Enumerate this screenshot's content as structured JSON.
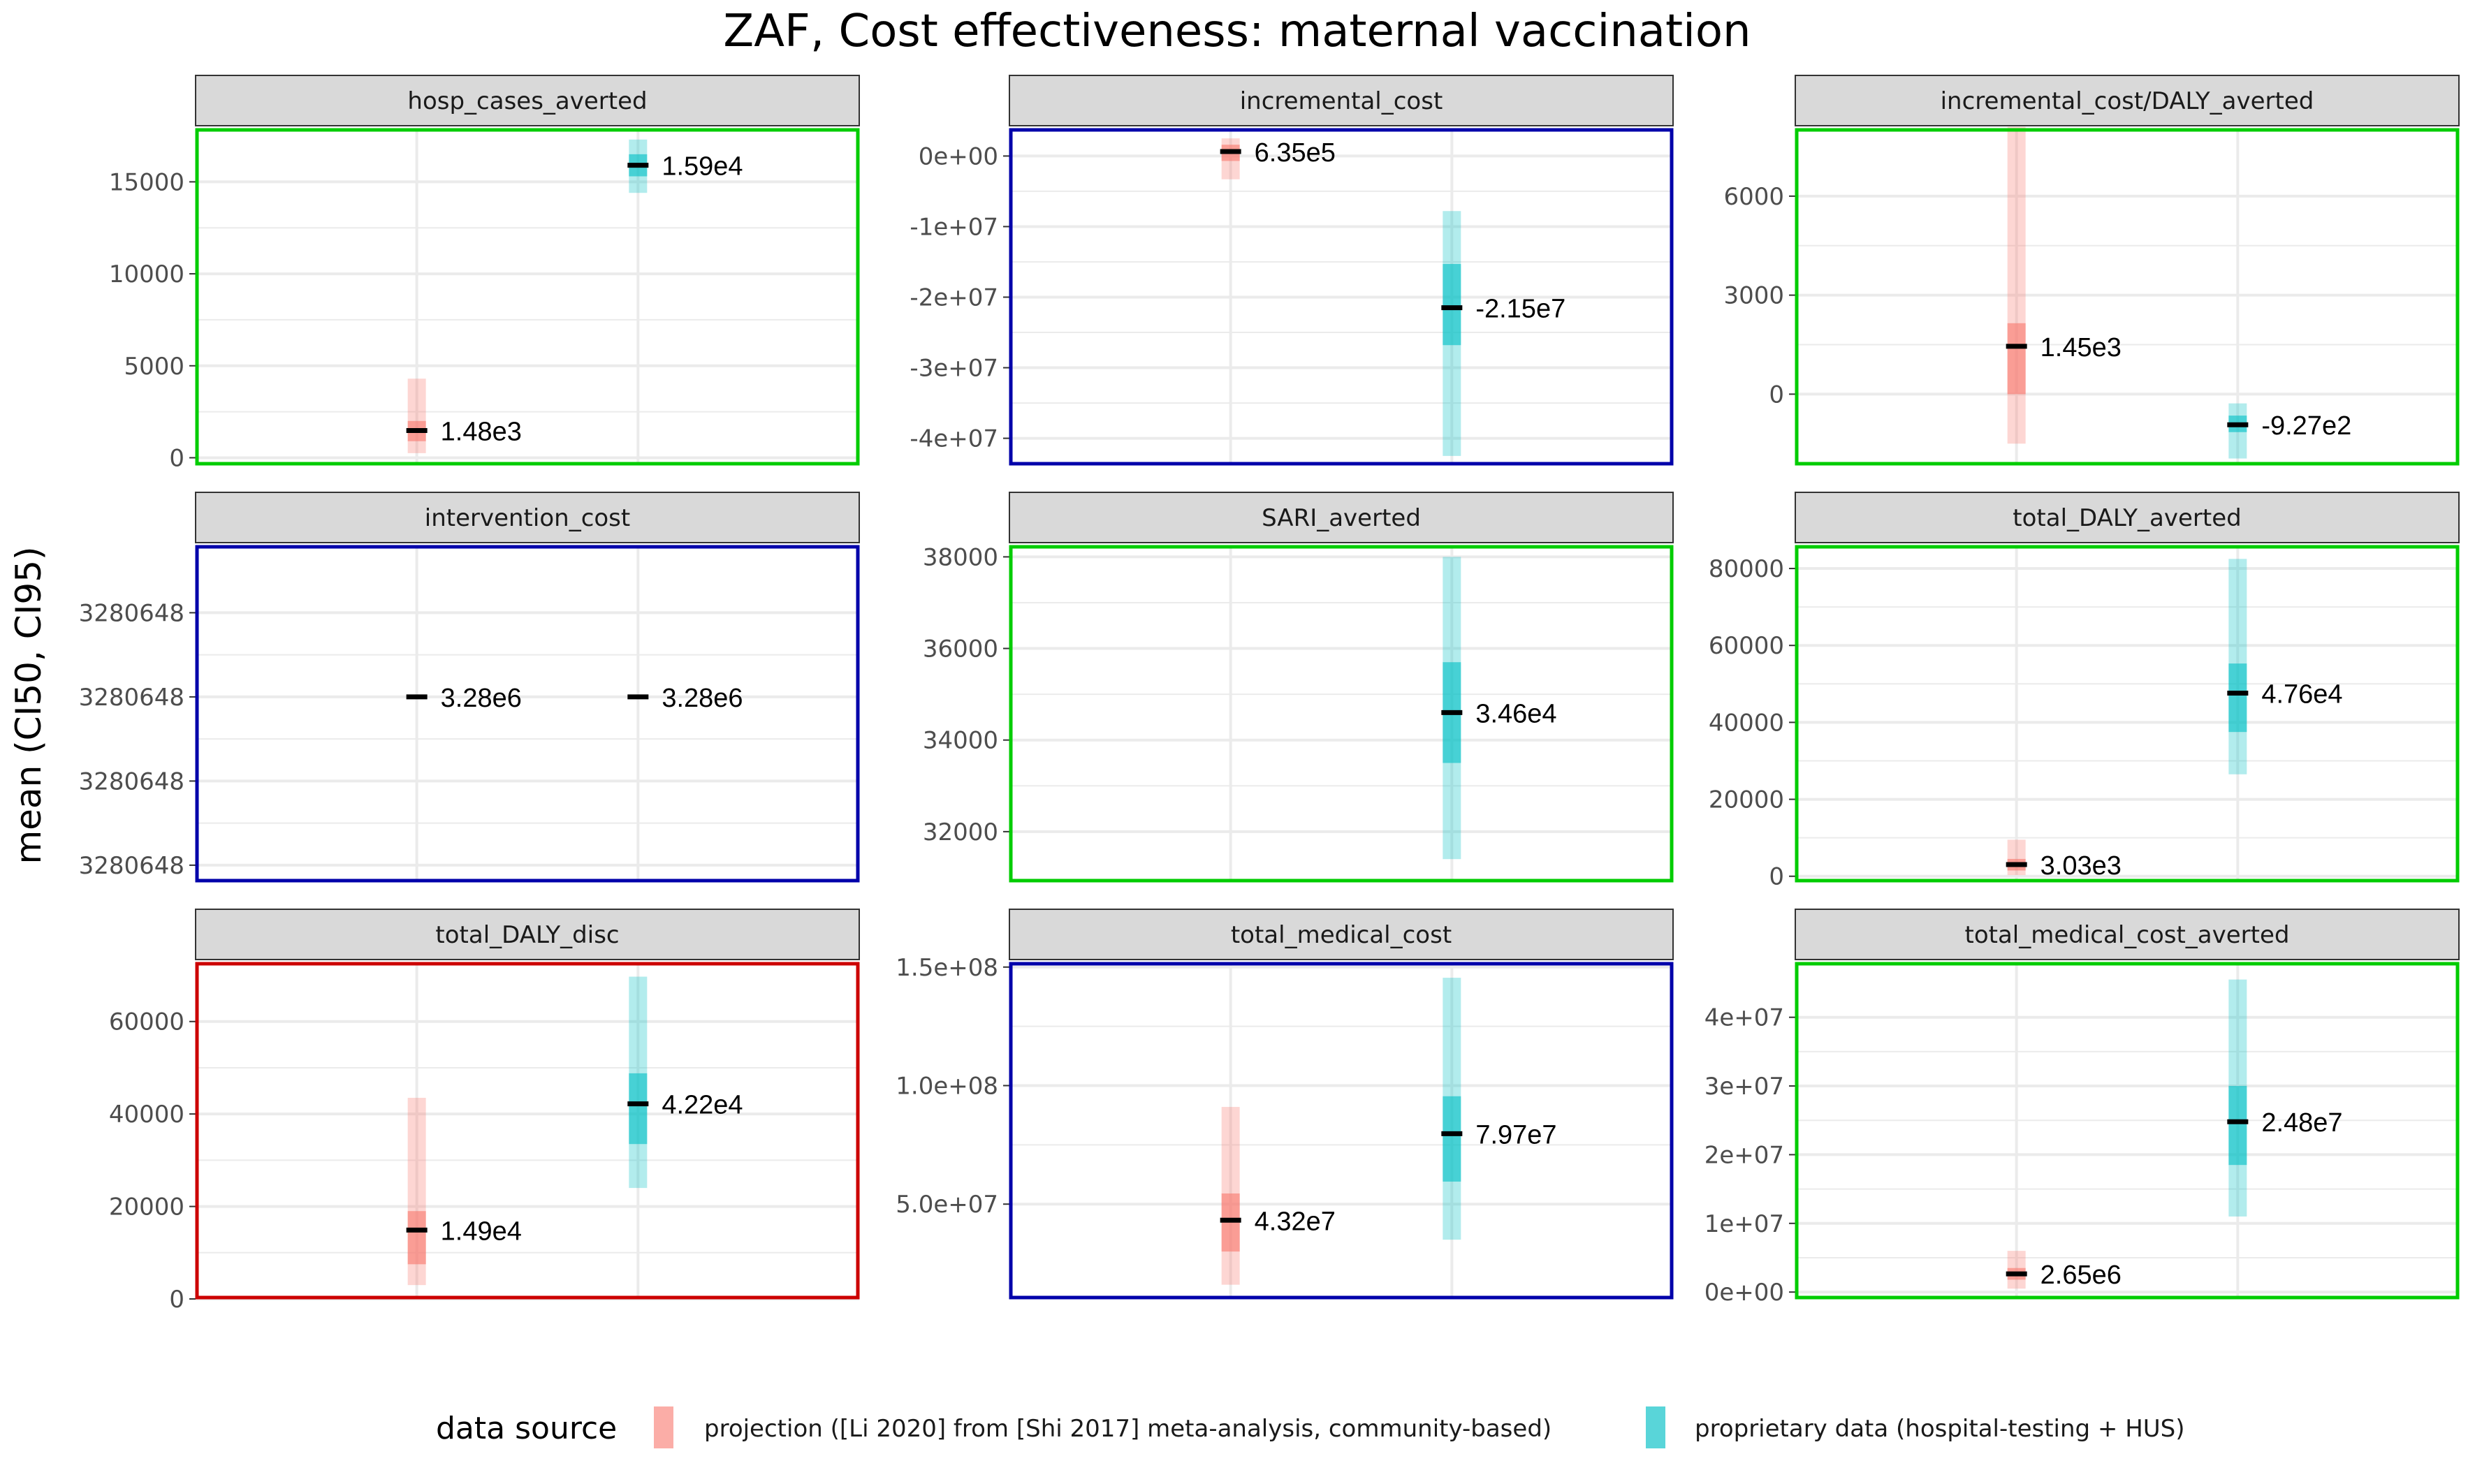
{
  "colors": {
    "projection": "#F8766D",
    "proprietary": "#00BFC4",
    "border_green": "#00CC00",
    "border_blue": "#0000AA",
    "border_red": "#CC0000",
    "strip_bg": "#D9D9D9",
    "grid": "#EBEBEB"
  },
  "chart_data": {
    "type": "facet-interval",
    "title": "ZAF, Cost effectiveness: maternal vaccination",
    "ylabel": "mean (CI50, CI95)",
    "legend": {
      "title": "data source",
      "position": "bottom",
      "entries": [
        {
          "label": "projection ([Li 2020] from [Shi 2017] meta-analysis, community-based)",
          "color_key": "projection"
        },
        {
          "label": "proprietary data (hospital-testing + HUS)",
          "color_key": "proprietary"
        }
      ]
    },
    "panels": [
      {
        "facet": "hosp_cases_averted",
        "border": "green",
        "ylim": [
          -400,
          17900
        ],
        "ticks": [
          {
            "v": 0,
            "label": "0"
          },
          {
            "v": 5000,
            "label": "5000"
          },
          {
            "v": 10000,
            "label": "10000"
          },
          {
            "v": 15000,
            "label": "15000"
          }
        ],
        "series": [
          {
            "source": "projection",
            "mean": 1480,
            "ci50": [
              900,
              2000
            ],
            "ci95": [
              250,
              4300
            ],
            "label": "1.48e3"
          },
          {
            "source": "proprietary",
            "mean": 15900,
            "ci50": [
              15300,
              16500
            ],
            "ci95": [
              14400,
              17300
            ],
            "label": "1.59e4"
          }
        ]
      },
      {
        "facet": "incremental_cost",
        "border": "blue",
        "ylim": [
          -43800000,
          3900000
        ],
        "ticks": [
          {
            "v": 0,
            "label": "0e+00"
          },
          {
            "v": -10000000,
            "label": "-1e+07"
          },
          {
            "v": -20000000,
            "label": "-2e+07"
          },
          {
            "v": -30000000,
            "label": "-3e+07"
          },
          {
            "v": -40000000,
            "label": "-4e+07"
          }
        ],
        "series": [
          {
            "source": "projection",
            "mean": 635000,
            "ci50": [
              -700000,
              1600000
            ],
            "ci95": [
              -3300000,
              2500000
            ],
            "label": "6.35e5"
          },
          {
            "source": "proprietary",
            "mean": -21500000,
            "ci50": [
              -26800000,
              -15300000
            ],
            "ci95": [
              -42500000,
              -7800000
            ],
            "label": "-2.15e7"
          }
        ]
      },
      {
        "facet": "incremental_cost/DALY_averted",
        "border": "green",
        "ylim": [
          -2150,
          8050
        ],
        "ticks": [
          {
            "v": 0,
            "label": "0"
          },
          {
            "v": 3000,
            "label": "3000"
          },
          {
            "v": 6000,
            "label": "6000"
          }
        ],
        "series": [
          {
            "source": "projection",
            "mean": 1450,
            "ci50": [
              0,
              2150
            ],
            "ci95": [
              -1500,
              8100
            ],
            "label": "1.45e3"
          },
          {
            "source": "proprietary",
            "mean": -927,
            "ci50": [
              -1150,
              -650
            ],
            "ci95": [
              -1950,
              -280
            ],
            "label": "-9.27e2"
          }
        ]
      },
      {
        "facet": "intervention_cost",
        "border": "blue",
        "ylim": [
          0,
          4
        ],
        "ticks": [
          {
            "v": 0.2,
            "label": "3280648"
          },
          {
            "v": 1.2,
            "label": "3280648"
          },
          {
            "v": 2.2,
            "label": "3280648"
          },
          {
            "v": 3.2,
            "label": "3280648"
          }
        ],
        "series": [
          {
            "source": "projection",
            "mean": 2.2,
            "ci50": [
              2.2,
              2.2
            ],
            "ci95": [
              2.2,
              2.2
            ],
            "label": "3.28e6"
          },
          {
            "source": "proprietary",
            "mean": 2.2,
            "ci50": [
              2.2,
              2.2
            ],
            "ci95": [
              2.2,
              2.2
            ],
            "label": "3.28e6"
          }
        ]
      },
      {
        "facet": "SARI_averted",
        "border": "green",
        "ylim": [
          30900,
          38250
        ],
        "ticks": [
          {
            "v": 32000,
            "label": "32000"
          },
          {
            "v": 34000,
            "label": "34000"
          },
          {
            "v": 36000,
            "label": "36000"
          },
          {
            "v": 38000,
            "label": "38000"
          }
        ],
        "series": [
          {
            "source": "proprietary",
            "mean": 34600,
            "ci50": [
              33500,
              35700
            ],
            "ci95": [
              31400,
              38000
            ],
            "label": "3.46e4"
          }
        ]
      },
      {
        "facet": "total_DALY_averted",
        "border": "green",
        "ylim": [
          -1500,
          86000
        ],
        "ticks": [
          {
            "v": 0,
            "label": "0"
          },
          {
            "v": 20000,
            "label": "20000"
          },
          {
            "v": 40000,
            "label": "40000"
          },
          {
            "v": 60000,
            "label": "60000"
          },
          {
            "v": 80000,
            "label": "80000"
          }
        ],
        "series": [
          {
            "source": "projection",
            "mean": 3030,
            "ci50": [
              1500,
              4500
            ],
            "ci95": [
              300,
              9500
            ],
            "label": "3.03e3"
          },
          {
            "source": "proprietary",
            "mean": 47600,
            "ci50": [
              37500,
              55300
            ],
            "ci95": [
              26500,
              82500
            ],
            "label": "4.76e4"
          }
        ]
      },
      {
        "facet": "total_DALY_disc",
        "border": "red",
        "ylim": [
          0,
          72800
        ],
        "ticks": [
          {
            "v": 0,
            "label": "0"
          },
          {
            "v": 20000,
            "label": "20000"
          },
          {
            "v": 40000,
            "label": "40000"
          },
          {
            "v": 60000,
            "label": "60000"
          }
        ],
        "series": [
          {
            "source": "projection",
            "mean": 14900,
            "ci50": [
              7500,
              19000
            ],
            "ci95": [
              3000,
              43500
            ],
            "label": "1.49e4"
          },
          {
            "source": "proprietary",
            "mean": 42200,
            "ci50": [
              33500,
              48800
            ],
            "ci95": [
              24000,
              69700
            ],
            "label": "4.22e4"
          }
        ]
      },
      {
        "facet": "total_medical_cost",
        "border": "blue",
        "ylim": [
          10000000,
          152000000
        ],
        "ticks": [
          {
            "v": 50000000,
            "label": "5.0e+07"
          },
          {
            "v": 100000000,
            "label": "1.0e+08"
          },
          {
            "v": 150000000,
            "label": "1.5e+08"
          }
        ],
        "series": [
          {
            "source": "projection",
            "mean": 43200000,
            "ci50": [
              30000000,
              54500000
            ],
            "ci95": [
              16000000,
              91000000
            ],
            "label": "4.32e7"
          },
          {
            "source": "proprietary",
            "mean": 79700000,
            "ci50": [
              59500000,
              95500000
            ],
            "ci95": [
              35000000,
              145500000
            ],
            "label": "7.97e7"
          }
        ]
      },
      {
        "facet": "total_medical_cost_averted",
        "border": "green",
        "ylim": [
          -1000000,
          48000000
        ],
        "ticks": [
          {
            "v": 0,
            "label": "0e+00"
          },
          {
            "v": 10000000,
            "label": "1e+07"
          },
          {
            "v": 20000000,
            "label": "2e+07"
          },
          {
            "v": 30000000,
            "label": "3e+07"
          },
          {
            "v": 40000000,
            "label": "4e+07"
          }
        ],
        "series": [
          {
            "source": "projection",
            "mean": 2650000,
            "ci50": [
              1800000,
              3500000
            ],
            "ci95": [
              500000,
              6000000
            ],
            "label": "2.65e6"
          },
          {
            "source": "proprietary",
            "mean": 24800000,
            "ci50": [
              18500000,
              30000000
            ],
            "ci95": [
              11000000,
              45500000
            ],
            "label": "2.48e7"
          }
        ]
      }
    ]
  }
}
